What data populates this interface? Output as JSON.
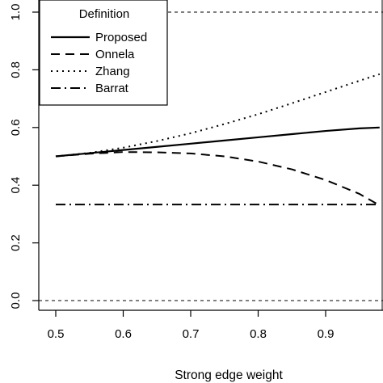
{
  "chart_data": {
    "type": "line",
    "title": "",
    "xlabel": "Strong edge weight",
    "ylabel": "",
    "xlim": [
      0.45,
      0.98
    ],
    "ylim": [
      -0.07,
      1.02
    ],
    "xticks": [
      0.5,
      0.6,
      0.7,
      0.8,
      0.9
    ],
    "yticks": [
      0.0,
      0.2,
      0.4,
      0.6,
      0.8,
      1.0
    ],
    "xtick_labels": [
      "0.5",
      "0.6",
      "0.7",
      "0.8",
      "0.9"
    ],
    "ytick_labels": [
      "0.0",
      "0.2",
      "0.4",
      "0.6",
      "0.8",
      "1.0"
    ],
    "grid": false,
    "reference_lines": [
      {
        "y": 1.0,
        "style": "dashed-thin"
      },
      {
        "y": 0.0,
        "style": "dashed-thin"
      }
    ],
    "legend": {
      "title": "Definition",
      "placement": "top-left"
    },
    "x": [
      0.5,
      0.55,
      0.6,
      0.65,
      0.7,
      0.75,
      0.8,
      0.85,
      0.9,
      0.95,
      0.98
    ],
    "series": [
      {
        "name": "Proposed",
        "dash": "solid",
        "values": [
          0.5,
          0.511,
          0.522,
          0.533,
          0.544,
          0.555,
          0.566,
          0.577,
          0.588,
          0.597,
          0.6
        ]
      },
      {
        "name": "Onnela",
        "dash": "dashed",
        "values": [
          0.5,
          0.509,
          0.515,
          0.514,
          0.51,
          0.5,
          0.482,
          0.455,
          0.418,
          0.37,
          0.33
        ]
      },
      {
        "name": "Zhang",
        "dash": "dotted",
        "values": [
          0.5,
          0.512,
          0.53,
          0.553,
          0.58,
          0.612,
          0.646,
          0.684,
          0.723,
          0.762,
          0.785
        ]
      },
      {
        "name": "Barrat",
        "dash": "dotdash",
        "values": [
          0.333,
          0.333,
          0.333,
          0.333,
          0.333,
          0.333,
          0.333,
          0.333,
          0.333,
          0.333,
          0.333
        ]
      }
    ]
  }
}
